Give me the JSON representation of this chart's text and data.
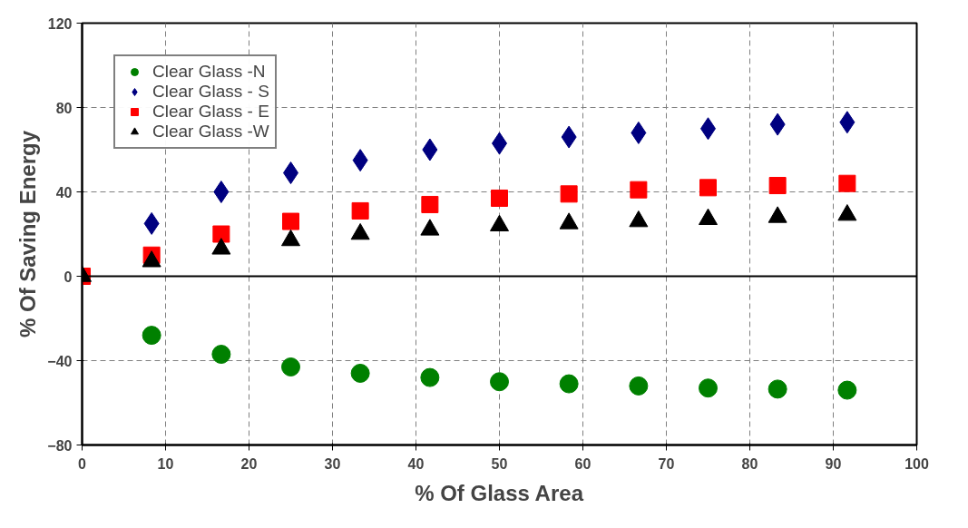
{
  "chart_data": {
    "type": "scatter",
    "xlabel": "% Of Glass Area",
    "ylabel": "% Of Saving Energy",
    "x": [
      0,
      8.33,
      16.67,
      25,
      33.33,
      41.67,
      50,
      58.33,
      66.67,
      75,
      83.33,
      91.67
    ],
    "series": [
      {
        "name": "Clear Glass -N",
        "color": "#008000",
        "marker": "circle",
        "values": [
          null,
          -28,
          -37,
          -43,
          -46,
          -48,
          -50,
          -51,
          -52,
          -53,
          -53.5,
          -54
        ]
      },
      {
        "name": "Clear Glass - S",
        "color": "#000080",
        "marker": "diamond",
        "values": [
          null,
          25,
          40,
          49,
          55,
          60,
          63,
          66,
          68,
          70,
          72,
          73
        ]
      },
      {
        "name": "Clear Glass - E",
        "color": "#ff0000",
        "marker": "square",
        "values": [
          0,
          10,
          20,
          26,
          31,
          34,
          37,
          39,
          41,
          42,
          43,
          44
        ]
      },
      {
        "name": "Clear Glass -W",
        "color": "#000000",
        "marker": "triangle",
        "values": [
          0,
          7,
          13,
          17,
          20,
          22,
          24,
          25,
          26,
          27,
          28,
          29
        ]
      }
    ],
    "xlim": [
      0,
      100
    ],
    "ylim": [
      -80,
      120
    ],
    "xticks": [
      0,
      10,
      20,
      30,
      40,
      50,
      60,
      70,
      80,
      90,
      100
    ],
    "yticks": [
      -80,
      -40,
      0,
      40,
      80,
      120
    ],
    "grid": true,
    "legend": "top left"
  }
}
